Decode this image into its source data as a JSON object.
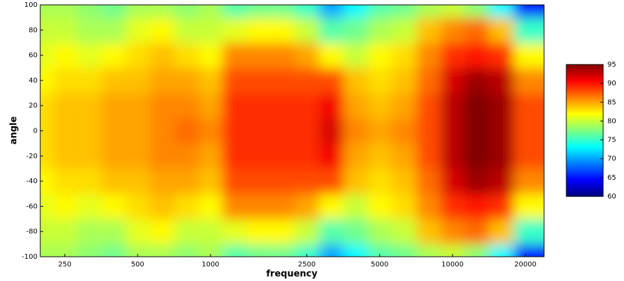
{
  "chart_data": {
    "type": "heatmap",
    "x_label": "frequency",
    "y_label": "angle",
    "x": [
      200,
      250,
      315,
      400,
      500,
      630,
      800,
      1000,
      1250,
      1600,
      2000,
      2500,
      3150,
      4000,
      5000,
      6300,
      8000,
      10000,
      12500,
      16000,
      20000
    ],
    "y": [
      -100,
      -80,
      -60,
      -40,
      -20,
      0,
      20,
      40,
      60,
      80,
      100
    ],
    "z": [
      [
        79,
        79,
        78,
        77,
        79,
        79,
        78,
        79,
        76,
        77,
        77,
        75,
        70,
        73,
        76,
        77,
        79,
        80,
        78,
        73,
        65
      ],
      [
        80,
        80,
        79,
        79,
        81,
        82,
        80,
        80,
        81,
        82,
        82,
        80,
        76,
        77,
        79,
        80,
        84,
        86,
        87,
        84,
        75
      ],
      [
        81,
        82,
        81,
        82,
        83,
        84,
        83,
        82,
        86,
        86,
        86,
        85,
        82,
        80,
        82,
        83,
        86,
        89,
        90,
        89,
        82
      ],
      [
        82,
        83,
        83,
        84,
        84,
        85,
        85,
        84,
        88,
        88,
        88,
        88,
        88,
        84,
        83,
        84,
        87,
        92,
        94,
        93,
        86
      ],
      [
        83,
        84,
        84,
        85,
        85,
        86,
        86,
        85,
        89,
        89,
        89,
        89,
        91,
        85,
        84,
        85,
        88,
        93,
        95,
        94,
        88
      ],
      [
        83,
        84,
        84,
        85,
        85,
        86,
        87,
        86,
        89,
        89,
        89,
        89,
        92,
        86,
        85,
        86,
        88,
        93,
        95,
        94,
        88
      ],
      [
        83,
        84,
        84,
        85,
        85,
        86,
        86,
        85,
        89,
        89,
        89,
        89,
        91,
        85,
        84,
        85,
        88,
        93,
        95,
        94,
        88
      ],
      [
        82,
        83,
        83,
        84,
        84,
        85,
        85,
        84,
        88,
        88,
        88,
        88,
        88,
        84,
        83,
        84,
        87,
        92,
        94,
        93,
        86
      ],
      [
        81,
        82,
        81,
        82,
        83,
        84,
        83,
        82,
        86,
        86,
        86,
        85,
        82,
        80,
        82,
        83,
        86,
        89,
        90,
        89,
        82
      ],
      [
        80,
        80,
        79,
        79,
        81,
        82,
        80,
        80,
        81,
        82,
        82,
        80,
        76,
        77,
        79,
        80,
        84,
        86,
        87,
        84,
        75
      ],
      [
        79,
        79,
        78,
        77,
        79,
        79,
        78,
        79,
        76,
        77,
        77,
        75,
        70,
        73,
        76,
        77,
        79,
        80,
        78,
        73,
        65
      ]
    ],
    "xlog": true,
    "xlim": [
      198,
      23900
    ],
    "xticks": [
      250,
      500,
      1000,
      2500,
      5000,
      10000,
      20000
    ],
    "ylim": [
      -100,
      100
    ],
    "yticks": [
      -100,
      -80,
      -60,
      -40,
      -20,
      0,
      20,
      40,
      60,
      80,
      100
    ],
    "colormap": "jet",
    "clim": [
      60,
      95
    ],
    "cticks": [
      60,
      65,
      70,
      75,
      80,
      85,
      90,
      95
    ]
  }
}
